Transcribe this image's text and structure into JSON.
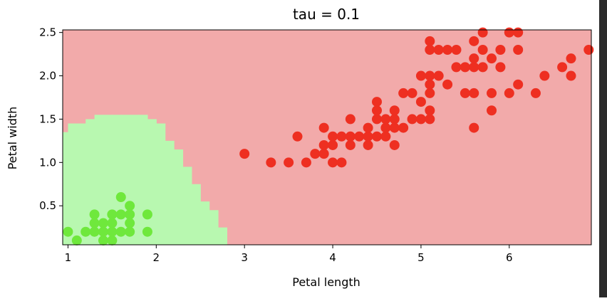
{
  "chart_data": {
    "type": "scatter",
    "title": "tau = 0.1",
    "xlabel": "Petal length",
    "ylabel": "Petal width",
    "xlim": [
      0.94,
      6.93
    ],
    "ylim": [
      0.05,
      2.53
    ],
    "xticks": [
      1,
      2,
      3,
      4,
      5,
      6
    ],
    "yticks": [
      0.5,
      1.0,
      1.5,
      2.0,
      2.5
    ],
    "xtick_labels": [
      "1",
      "2",
      "3",
      "4",
      "5",
      "6"
    ],
    "ytick_labels": [
      "0.5",
      "1.0",
      "1.5",
      "2.0",
      "2.5"
    ],
    "grid": false,
    "colors": {
      "region_other": "#f2aaaa",
      "region_setosa": "#b8f8b0",
      "points_setosa": "#6fe83c",
      "points_other": "#ee2f21"
    },
    "decision_boundary": {
      "step": 0.1,
      "green_region_columns": [
        {
          "x_from": 0.9,
          "x_to": 1.0,
          "y_top": 1.35
        },
        {
          "x_from": 1.0,
          "x_to": 1.1,
          "y_top": 1.45
        },
        {
          "x_from": 1.1,
          "x_to": 1.2,
          "y_top": 1.45
        },
        {
          "x_from": 1.2,
          "x_to": 1.3,
          "y_top": 1.5
        },
        {
          "x_from": 1.3,
          "x_to": 1.4,
          "y_top": 1.55
        },
        {
          "x_from": 1.4,
          "x_to": 1.5,
          "y_top": 1.55
        },
        {
          "x_from": 1.5,
          "x_to": 1.6,
          "y_top": 1.55
        },
        {
          "x_from": 1.6,
          "x_to": 1.7,
          "y_top": 1.55
        },
        {
          "x_from": 1.7,
          "x_to": 1.8,
          "y_top": 1.55
        },
        {
          "x_from": 1.8,
          "x_to": 1.9,
          "y_top": 1.55
        },
        {
          "x_from": 1.9,
          "x_to": 2.0,
          "y_top": 1.5
        },
        {
          "x_from": 2.0,
          "x_to": 2.1,
          "y_top": 1.45
        },
        {
          "x_from": 2.1,
          "x_to": 2.2,
          "y_top": 1.25
        },
        {
          "x_from": 2.2,
          "x_to": 2.3,
          "y_top": 1.15
        },
        {
          "x_from": 2.3,
          "x_to": 2.4,
          "y_top": 0.95
        },
        {
          "x_from": 2.4,
          "x_to": 2.5,
          "y_top": 0.75
        },
        {
          "x_from": 2.5,
          "x_to": 2.6,
          "y_top": 0.55
        },
        {
          "x_from": 2.6,
          "x_to": 2.7,
          "y_top": 0.45
        },
        {
          "x_from": 2.7,
          "x_to": 2.8,
          "y_top": 0.25
        },
        {
          "x_from": 2.8,
          "x_to": 2.9,
          "y_top": 0.05
        }
      ]
    },
    "series": [
      {
        "points": [
          [
            1.0,
            0.2
          ],
          [
            1.1,
            0.1
          ],
          [
            1.2,
            0.2
          ],
          [
            1.3,
            0.2
          ],
          [
            1.3,
            0.3
          ],
          [
            1.3,
            0.4
          ],
          [
            1.4,
            0.1
          ],
          [
            1.4,
            0.2
          ],
          [
            1.4,
            0.3
          ],
          [
            1.5,
            0.1
          ],
          [
            1.5,
            0.2
          ],
          [
            1.5,
            0.3
          ],
          [
            1.5,
            0.4
          ],
          [
            1.6,
            0.2
          ],
          [
            1.6,
            0.4
          ],
          [
            1.6,
            0.6
          ],
          [
            1.7,
            0.2
          ],
          [
            1.7,
            0.3
          ],
          [
            1.7,
            0.4
          ],
          [
            1.7,
            0.5
          ],
          [
            1.9,
            0.2
          ],
          [
            1.9,
            0.4
          ]
        ]
      },
      {
        "points": [
          [
            3.0,
            1.1
          ],
          [
            3.3,
            1.0
          ],
          [
            3.5,
            1.0
          ],
          [
            3.6,
            1.3
          ],
          [
            3.7,
            1.0
          ],
          [
            3.8,
            1.1
          ],
          [
            3.9,
            1.1
          ],
          [
            3.9,
            1.2
          ],
          [
            3.9,
            1.4
          ],
          [
            4.0,
            1.0
          ],
          [
            4.0,
            1.2
          ],
          [
            4.0,
            1.3
          ],
          [
            4.1,
            1.0
          ],
          [
            4.1,
            1.3
          ],
          [
            4.2,
            1.2
          ],
          [
            4.2,
            1.3
          ],
          [
            4.2,
            1.5
          ],
          [
            4.3,
            1.3
          ],
          [
            4.4,
            1.2
          ],
          [
            4.4,
            1.3
          ],
          [
            4.4,
            1.4
          ],
          [
            4.5,
            1.3
          ],
          [
            4.5,
            1.5
          ],
          [
            4.5,
            1.6
          ],
          [
            4.5,
            1.7
          ],
          [
            4.6,
            1.3
          ],
          [
            4.6,
            1.4
          ],
          [
            4.6,
            1.5
          ],
          [
            4.7,
            1.2
          ],
          [
            4.7,
            1.4
          ],
          [
            4.7,
            1.5
          ],
          [
            4.7,
            1.6
          ],
          [
            4.8,
            1.4
          ],
          [
            4.8,
            1.8
          ],
          [
            4.9,
            1.5
          ],
          [
            4.9,
            1.8
          ],
          [
            5.0,
            1.5
          ],
          [
            5.0,
            1.7
          ],
          [
            5.0,
            2.0
          ],
          [
            5.1,
            1.5
          ],
          [
            5.1,
            1.6
          ],
          [
            5.1,
            1.8
          ],
          [
            5.1,
            1.9
          ],
          [
            5.1,
            2.0
          ],
          [
            5.1,
            2.3
          ],
          [
            5.1,
            2.4
          ],
          [
            5.2,
            2.0
          ],
          [
            5.2,
            2.3
          ],
          [
            5.3,
            1.9
          ],
          [
            5.3,
            2.3
          ],
          [
            5.4,
            2.1
          ],
          [
            5.4,
            2.3
          ],
          [
            5.5,
            1.8
          ],
          [
            5.5,
            2.1
          ],
          [
            5.6,
            1.4
          ],
          [
            5.6,
            1.8
          ],
          [
            5.6,
            2.1
          ],
          [
            5.6,
            2.2
          ],
          [
            5.6,
            2.4
          ],
          [
            5.7,
            2.1
          ],
          [
            5.7,
            2.3
          ],
          [
            5.7,
            2.5
          ],
          [
            5.8,
            1.6
          ],
          [
            5.8,
            1.8
          ],
          [
            5.8,
            2.2
          ],
          [
            5.9,
            2.1
          ],
          [
            5.9,
            2.3
          ],
          [
            6.0,
            1.8
          ],
          [
            6.0,
            2.5
          ],
          [
            6.1,
            1.9
          ],
          [
            6.1,
            2.3
          ],
          [
            6.1,
            2.5
          ],
          [
            6.3,
            1.8
          ],
          [
            6.4,
            2.0
          ],
          [
            6.6,
            2.1
          ],
          [
            6.7,
            2.0
          ],
          [
            6.7,
            2.2
          ],
          [
            6.9,
            2.3
          ]
        ]
      }
    ]
  }
}
